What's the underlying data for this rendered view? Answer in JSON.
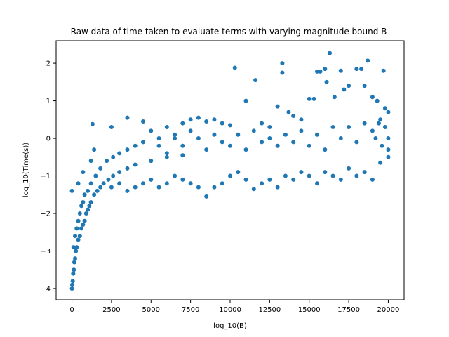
{
  "chart_data": {
    "type": "scatter",
    "title": "Raw data of time taken to evaluate terms with varying magnitude bound B",
    "xlabel": "log_10(B)",
    "ylabel": "log_10(Time(s))",
    "xlim": [
      -1000,
      21000
    ],
    "ylim": [
      -4.3,
      2.6
    ],
    "xticks": [
      0,
      2500,
      5000,
      7500,
      10000,
      12500,
      15000,
      17500,
      20000
    ],
    "yticks": [
      -4,
      -3,
      -2,
      -1,
      0,
      1,
      2
    ],
    "grid": false,
    "legend": "none",
    "marker_color": "#1f77b4",
    "series": [
      {
        "points": [
          [
            0,
            -4.0
          ],
          [
            20,
            -3.9
          ],
          [
            50,
            -3.8
          ],
          [
            80,
            -3.6
          ],
          [
            120,
            -3.5
          ],
          [
            150,
            -3.3
          ],
          [
            200,
            -3.2
          ],
          [
            250,
            -3.0
          ],
          [
            300,
            -2.9
          ],
          [
            400,
            -2.7
          ],
          [
            500,
            -2.6
          ],
          [
            600,
            -2.4
          ],
          [
            700,
            -2.3
          ],
          [
            800,
            -2.2
          ],
          [
            900,
            -2.0
          ],
          [
            1000,
            -1.9
          ],
          [
            1100,
            -1.8
          ],
          [
            1200,
            -1.7
          ],
          [
            1400,
            -1.5
          ],
          [
            1600,
            -1.4
          ],
          [
            1800,
            -1.3
          ],
          [
            2000,
            -1.2
          ],
          [
            2300,
            -1.1
          ],
          [
            2600,
            -1.0
          ],
          [
            3000,
            -0.9
          ],
          [
            3500,
            -0.8
          ],
          [
            4000,
            -0.7
          ],
          [
            5000,
            -0.6
          ],
          [
            6000,
            -0.5
          ],
          [
            7000,
            -0.45
          ],
          [
            100,
            -2.9
          ],
          [
            200,
            -2.6
          ],
          [
            300,
            -2.4
          ],
          [
            400,
            -2.2
          ],
          [
            500,
            -2.0
          ],
          [
            600,
            -1.8
          ],
          [
            700,
            -1.7
          ],
          [
            800,
            -1.5
          ],
          [
            1000,
            -1.4
          ],
          [
            1200,
            -1.2
          ],
          [
            1500,
            -1.0
          ],
          [
            1800,
            -0.8
          ],
          [
            2200,
            -0.6
          ],
          [
            2600,
            -0.5
          ],
          [
            3000,
            -0.4
          ],
          [
            3500,
            -0.3
          ],
          [
            4000,
            -0.2
          ],
          [
            4500,
            -0.1
          ],
          [
            5500,
            0.0
          ],
          [
            6500,
            0.1
          ],
          [
            0,
            -1.4
          ],
          [
            400,
            -1.2
          ],
          [
            700,
            -0.9
          ],
          [
            1200,
            -0.6
          ],
          [
            1300,
            0.38
          ],
          [
            1400,
            -0.3
          ],
          [
            2500,
            0.3
          ],
          [
            3500,
            0.55
          ],
          [
            4500,
            0.45
          ],
          [
            6000,
            0.3
          ],
          [
            7000,
            0.4
          ],
          [
            7500,
            0.5
          ],
          [
            8000,
            0.55
          ],
          [
            8500,
            0.45
          ],
          [
            9000,
            0.5
          ],
          [
            9500,
            0.4
          ],
          [
            10000,
            0.35
          ],
          [
            10300,
            1.88
          ],
          [
            11000,
            1.0
          ],
          [
            11600,
            1.55
          ],
          [
            12000,
            0.4
          ],
          [
            12500,
            0.3
          ],
          [
            13000,
            0.85
          ],
          [
            13300,
            1.75
          ],
          [
            13300,
            2.0
          ],
          [
            13700,
            0.7
          ],
          [
            14000,
            0.6
          ],
          [
            14500,
            0.5
          ],
          [
            15000,
            1.05
          ],
          [
            15300,
            1.05
          ],
          [
            15500,
            1.78
          ],
          [
            15700,
            1.78
          ],
          [
            16000,
            1.85
          ],
          [
            16100,
            1.5
          ],
          [
            16300,
            2.27
          ],
          [
            16600,
            1.1
          ],
          [
            17000,
            1.8
          ],
          [
            17200,
            1.3
          ],
          [
            17500,
            1.4
          ],
          [
            18000,
            1.85
          ],
          [
            18300,
            1.85
          ],
          [
            18500,
            1.4
          ],
          [
            18700,
            2.07
          ],
          [
            19000,
            1.1
          ],
          [
            19300,
            1.0
          ],
          [
            19700,
            1.8
          ],
          [
            19800,
            0.8
          ],
          [
            20000,
            0.7
          ],
          [
            2500,
            -1.3
          ],
          [
            3000,
            -1.2
          ],
          [
            3500,
            -1.4
          ],
          [
            4000,
            -1.3
          ],
          [
            4500,
            -1.2
          ],
          [
            5000,
            -1.1
          ],
          [
            5500,
            -1.3
          ],
          [
            6000,
            -1.2
          ],
          [
            6500,
            -1.0
          ],
          [
            7000,
            -1.1
          ],
          [
            7500,
            -1.2
          ],
          [
            8000,
            -1.3
          ],
          [
            8500,
            -1.55
          ],
          [
            9000,
            -1.3
          ],
          [
            9500,
            -1.2
          ],
          [
            10000,
            -1.0
          ],
          [
            10500,
            -0.9
          ],
          [
            11000,
            -1.1
          ],
          [
            11500,
            -1.35
          ],
          [
            12000,
            -1.2
          ],
          [
            12500,
            -1.1
          ],
          [
            13000,
            -1.3
          ],
          [
            13500,
            -1.0
          ],
          [
            14000,
            -1.1
          ],
          [
            14500,
            -0.9
          ],
          [
            15000,
            -1.0
          ],
          [
            15500,
            -1.2
          ],
          [
            16000,
            -0.9
          ],
          [
            16500,
            -1.0
          ],
          [
            17000,
            -1.1
          ],
          [
            17500,
            -0.8
          ],
          [
            18000,
            -1.0
          ],
          [
            18500,
            -0.9
          ],
          [
            19000,
            -1.1
          ],
          [
            19500,
            -0.65
          ],
          [
            20000,
            -0.5
          ],
          [
            5000,
            0.2
          ],
          [
            5500,
            -0.2
          ],
          [
            6000,
            -0.4
          ],
          [
            6500,
            0.0
          ],
          [
            7000,
            -0.2
          ],
          [
            7500,
            0.2
          ],
          [
            8000,
            0.0
          ],
          [
            8500,
            -0.3
          ],
          [
            9000,
            0.1
          ],
          [
            9500,
            -0.1
          ],
          [
            10000,
            -0.2
          ],
          [
            10500,
            0.1
          ],
          [
            11000,
            -0.3
          ],
          [
            11500,
            0.2
          ],
          [
            12000,
            -0.1
          ],
          [
            12500,
            0.0
          ],
          [
            13000,
            -0.2
          ],
          [
            13500,
            0.1
          ],
          [
            14000,
            -0.1
          ],
          [
            14500,
            0.2
          ],
          [
            15000,
            -0.2
          ],
          [
            15500,
            0.1
          ],
          [
            16000,
            -0.3
          ],
          [
            16500,
            0.3
          ],
          [
            17000,
            0.0
          ],
          [
            17500,
            0.3
          ],
          [
            18000,
            -0.1
          ],
          [
            18500,
            0.4
          ],
          [
            19000,
            0.2
          ],
          [
            19500,
            0.5
          ],
          [
            20000,
            0.0
          ],
          [
            20000,
            -0.3
          ],
          [
            19800,
            0.3
          ],
          [
            19600,
            -0.2
          ],
          [
            19400,
            0.4
          ],
          [
            19200,
            0.0
          ]
        ]
      }
    ]
  }
}
